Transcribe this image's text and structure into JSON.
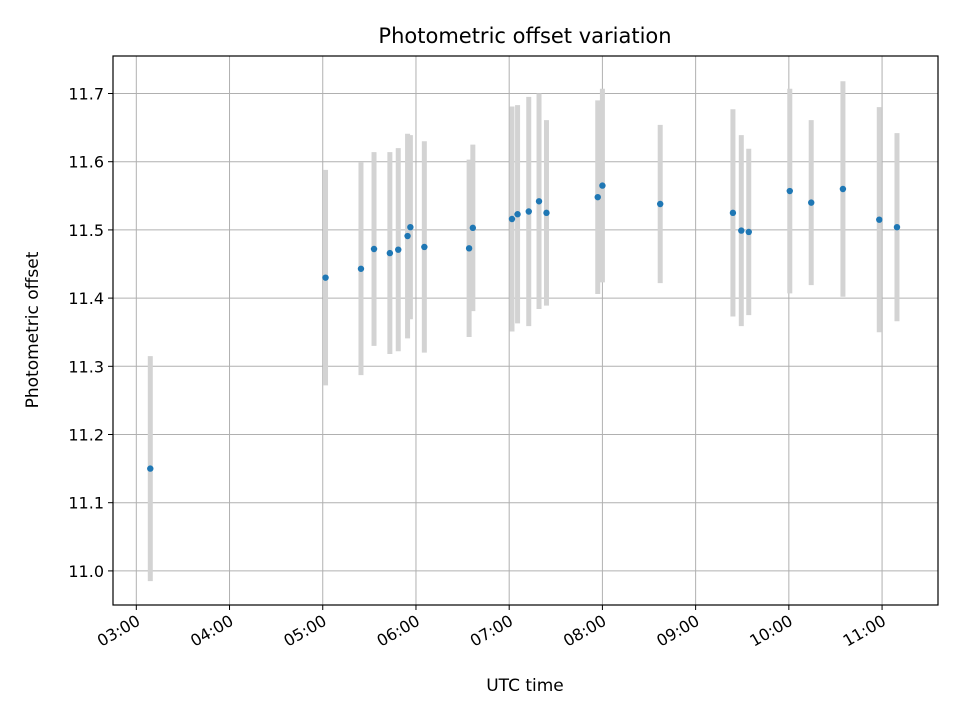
{
  "chart_data": {
    "type": "scatter",
    "title": "Photometric offset variation",
    "xlabel": "UTC time",
    "ylabel": "Photometric offset",
    "grid": true,
    "xlim": [
      2.75,
      11.6
    ],
    "ylim": [
      10.95,
      11.755
    ],
    "x_ticks": [
      3,
      4,
      5,
      6,
      7,
      8,
      9,
      10,
      11
    ],
    "x_tick_labels": [
      "03:00",
      "04:00",
      "05:00",
      "06:00",
      "07:00",
      "08:00",
      "09:00",
      "10:00",
      "11:00"
    ],
    "y_ticks": [
      11.0,
      11.1,
      11.2,
      11.3,
      11.4,
      11.5,
      11.6,
      11.7
    ],
    "y_tick_labels": [
      "11.0",
      "11.1",
      "11.2",
      "11.3",
      "11.4",
      "11.5",
      "11.6",
      "11.7"
    ],
    "x_unit": "hours UTC",
    "point_color": "#1f77b4",
    "errorbar_color": "#d3d3d3",
    "points": [
      {
        "x": 3.15,
        "y": 11.15,
        "err": 0.165
      },
      {
        "x": 5.03,
        "y": 11.43,
        "err": 0.158
      },
      {
        "x": 5.41,
        "y": 11.443,
        "err": 0.156
      },
      {
        "x": 5.55,
        "y": 11.472,
        "err": 0.142
      },
      {
        "x": 5.72,
        "y": 11.466,
        "err": 0.148
      },
      {
        "x": 5.81,
        "y": 11.471,
        "err": 0.149
      },
      {
        "x": 5.91,
        "y": 11.491,
        "err": 0.15
      },
      {
        "x": 5.94,
        "y": 11.504,
        "err": 0.135
      },
      {
        "x": 6.09,
        "y": 11.475,
        "err": 0.155
      },
      {
        "x": 6.57,
        "y": 11.473,
        "err": 0.13
      },
      {
        "x": 6.61,
        "y": 11.503,
        "err": 0.122
      },
      {
        "x": 7.03,
        "y": 11.516,
        "err": 0.165
      },
      {
        "x": 7.09,
        "y": 11.523,
        "err": 0.16
      },
      {
        "x": 7.21,
        "y": 11.527,
        "err": 0.168
      },
      {
        "x": 7.32,
        "y": 11.542,
        "err": 0.158
      },
      {
        "x": 7.4,
        "y": 11.525,
        "err": 0.136
      },
      {
        "x": 7.95,
        "y": 11.548,
        "err": 0.142
      },
      {
        "x": 8.0,
        "y": 11.565,
        "err": 0.142
      },
      {
        "x": 8.62,
        "y": 11.538,
        "err": 0.116
      },
      {
        "x": 9.4,
        "y": 11.525,
        "err": 0.152
      },
      {
        "x": 9.49,
        "y": 11.499,
        "err": 0.14
      },
      {
        "x": 9.57,
        "y": 11.497,
        "err": 0.122
      },
      {
        "x": 10.01,
        "y": 11.557,
        "err": 0.15
      },
      {
        "x": 10.24,
        "y": 11.54,
        "err": 0.121
      },
      {
        "x": 10.58,
        "y": 11.56,
        "err": 0.158
      },
      {
        "x": 10.97,
        "y": 11.515,
        "err": 0.165
      },
      {
        "x": 11.16,
        "y": 11.504,
        "err": 0.138
      }
    ]
  }
}
